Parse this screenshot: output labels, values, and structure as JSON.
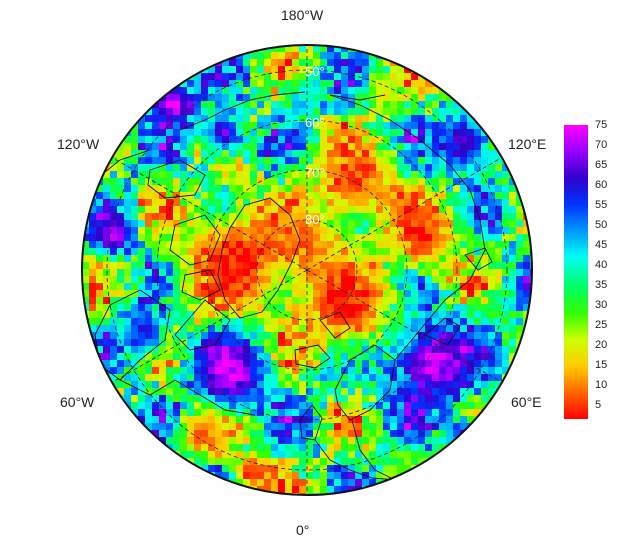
{
  "map": {
    "projection": "north-polar-stereographic",
    "lon_labels": {
      "top": "180°W",
      "bottom": "0°",
      "upper_left": "120°W",
      "upper_right": "120°E",
      "lower_left": "60°W",
      "lower_right": "60°E"
    },
    "lat_labels": [
      "50°",
      "60°",
      "70°",
      "80°"
    ],
    "colors": {
      "background": "#ffffff",
      "grid": "#222222",
      "coast": "#111111"
    }
  },
  "colorbar": {
    "ticks": [
      "75",
      "70",
      "65",
      "60",
      "55",
      "50",
      "45",
      "40",
      "35",
      "30",
      "25",
      "20",
      "15",
      "10",
      "5"
    ],
    "min": 1,
    "max": 77,
    "colors": [
      "#ff0000",
      "#ff6600",
      "#ffcc00",
      "#ccff00",
      "#33ff00",
      "#00ff66",
      "#00ffee",
      "#0099ff",
      "#0033ff",
      "#3300cc",
      "#9900ff",
      "#ff00ff"
    ]
  }
}
